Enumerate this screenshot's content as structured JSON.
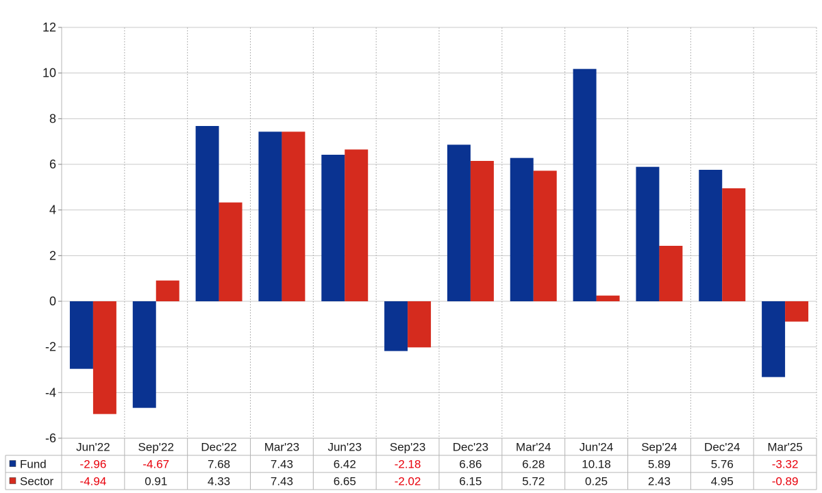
{
  "chart_data": {
    "type": "bar",
    "categories": [
      "Jun'22",
      "Sep'22",
      "Dec'22",
      "Mar'23",
      "Jun'23",
      "Sep'23",
      "Dec'23",
      "Mar'24",
      "Jun'24",
      "Sep'24",
      "Dec'24",
      "Mar'25"
    ],
    "series": [
      {
        "name": "Fund",
        "color": "#0a3391",
        "values": [
          -2.96,
          -4.67,
          7.68,
          7.43,
          6.42,
          -2.18,
          6.86,
          6.28,
          10.18,
          5.89,
          5.76,
          -3.32
        ],
        "labels": [
          "-2.96",
          "-4.67",
          "7.68",
          "7.43",
          "6.42",
          "-2.18",
          "6.86",
          "6.28",
          "10.18",
          "5.89",
          "5.76",
          "-3.32"
        ]
      },
      {
        "name": "Sector",
        "color": "#d52b1e",
        "values": [
          -4.94,
          0.91,
          4.33,
          7.43,
          6.65,
          -2.02,
          6.15,
          5.72,
          0.25,
          2.43,
          4.95,
          -0.89
        ],
        "labels": [
          "-4.94",
          "0.91",
          "4.33",
          "7.43",
          "6.65",
          "-2.02",
          "6.15",
          "5.72",
          "0.25",
          "2.43",
          "4.95",
          "-0.89"
        ]
      }
    ],
    "ylim": [
      -6,
      12
    ],
    "yticks": [
      "-6",
      "-4",
      "-2",
      "0",
      "2",
      "4",
      "6",
      "8",
      "10",
      "12"
    ],
    "grid": true,
    "legend": "data-table-below",
    "negative_color": "#e8000b",
    "positive_color": "#1a1a1a"
  }
}
